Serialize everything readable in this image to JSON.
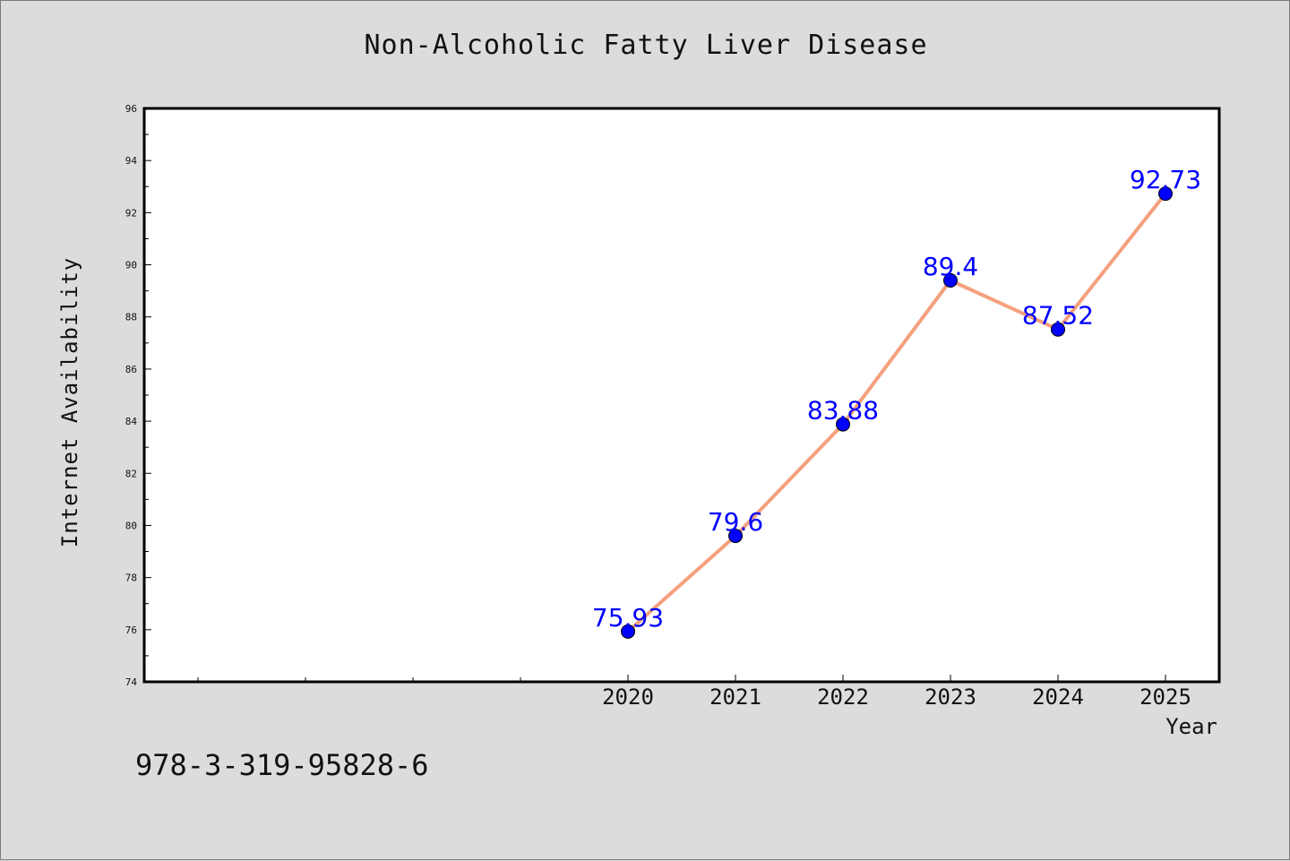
{
  "chart_data": {
    "type": "line",
    "title": "Non-Alcoholic Fatty Liver Disease",
    "xlabel": "Year",
    "ylabel": "Internet Availability",
    "x": [
      "2020",
      "2021",
      "2022",
      "2023",
      "2024",
      "2025"
    ],
    "values": [
      75.93,
      79.6,
      83.88,
      89.4,
      87.52,
      92.73
    ],
    "data_labels": [
      "75.93",
      "79.6",
      "83.88",
      "89.4",
      "87.52",
      "92.73"
    ],
    "y_ticks": [
      "74",
      "76",
      "78",
      "80",
      "82",
      "84",
      "86",
      "88",
      "90",
      "92",
      "94",
      "96"
    ],
    "ylim": [
      74,
      96
    ],
    "grid": false,
    "legend": "none",
    "line_color": "#f4a07e",
    "marker_color": "#0000ff",
    "label_color": "#0000ff"
  },
  "footer": {
    "code": "978-3-319-95828-6"
  }
}
